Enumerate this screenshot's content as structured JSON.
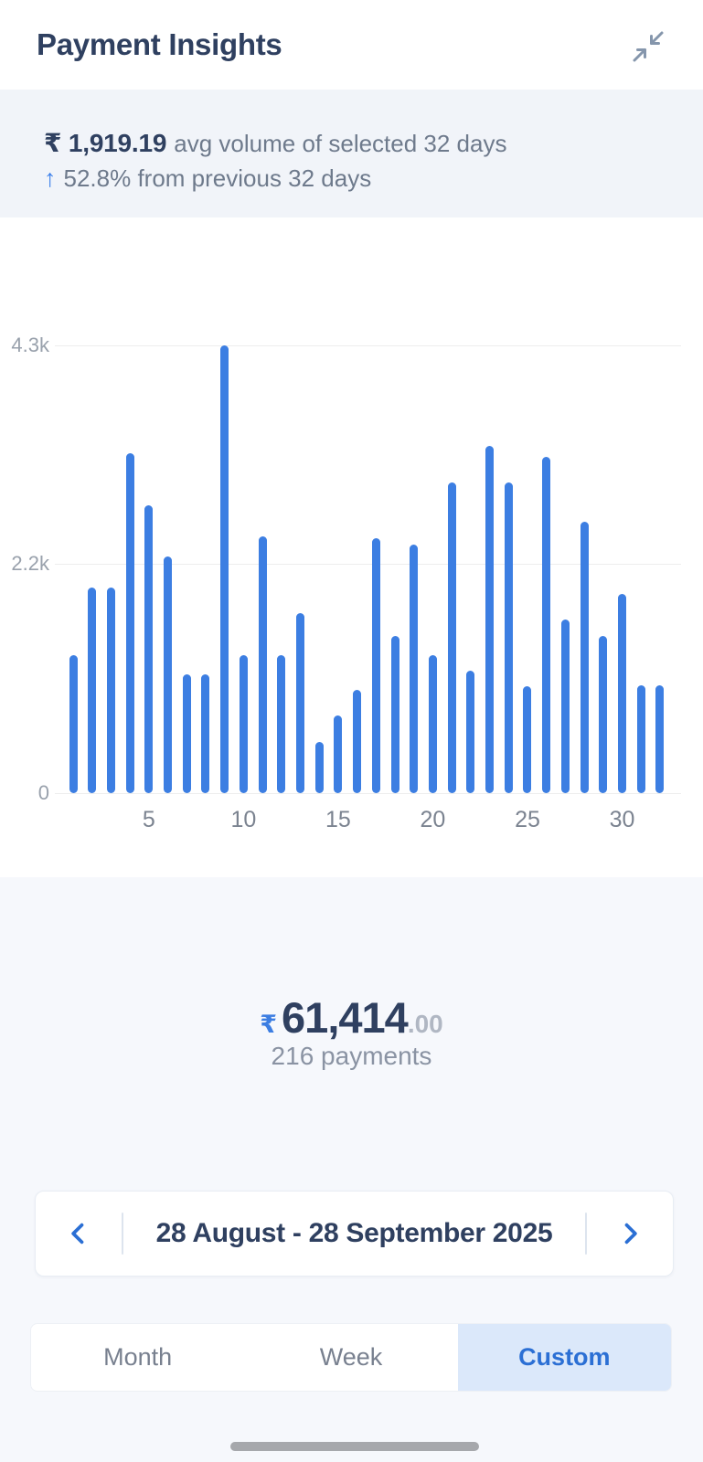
{
  "header": {
    "title": "Payment Insights"
  },
  "summary": {
    "avg_value": "₹ 1,919.19",
    "avg_caption": "avg volume of selected 32 days",
    "trend_arrow": "↑",
    "trend_text": "52.8% from previous 32 days"
  },
  "chart_data": {
    "type": "bar",
    "title": "",
    "xlabel": "",
    "ylabel": "",
    "ylim": [
      0,
      4300
    ],
    "grid": true,
    "legend": false,
    "bar_color": "#3c7ee2",
    "x_ticks": [
      5,
      10,
      15,
      20,
      25,
      30
    ],
    "y_ticks": [
      {
        "label": "4.3k",
        "value": 4300
      },
      {
        "label": "2.2k",
        "value": 2200
      },
      {
        "label": "0",
        "value": 0
      }
    ],
    "values": [
      1325,
      1975,
      1975,
      3265,
      2764,
      2273,
      1141,
      1141,
      4300,
      1325,
      2466,
      1325,
      1729,
      491,
      746,
      992,
      2449,
      1510,
      2387,
      1325,
      2984,
      1176,
      3335,
      2984,
      1027,
      3230,
      1667,
      2606,
      1510,
      1913,
      1036,
      1036
    ]
  },
  "total": {
    "currency": "₹",
    "amount": "61,414",
    "fraction": ".00",
    "payments": "216 payments"
  },
  "date_selector": {
    "label": "28 August - 28 September 2025"
  },
  "tabs": {
    "items": [
      {
        "label": "Month",
        "active": false
      },
      {
        "label": "Week",
        "active": false
      },
      {
        "label": "Custom",
        "active": true
      }
    ]
  },
  "icons": {
    "header_right": "collapse-arrows-icon",
    "date_prev": "chevron-left-icon",
    "date_next": "chevron-right-icon"
  },
  "colors": {
    "navy_text": "#2f4060",
    "gray_text": "#6e7a8c",
    "accent_blue": "#2b6fd4",
    "bar_blue": "#3c7ee2",
    "trend_blue": "#3f82ea",
    "summary_bg": "#f1f4f9",
    "panel_bg": "#f6f8fc",
    "active_tab_bg": "#dbe8fa"
  }
}
